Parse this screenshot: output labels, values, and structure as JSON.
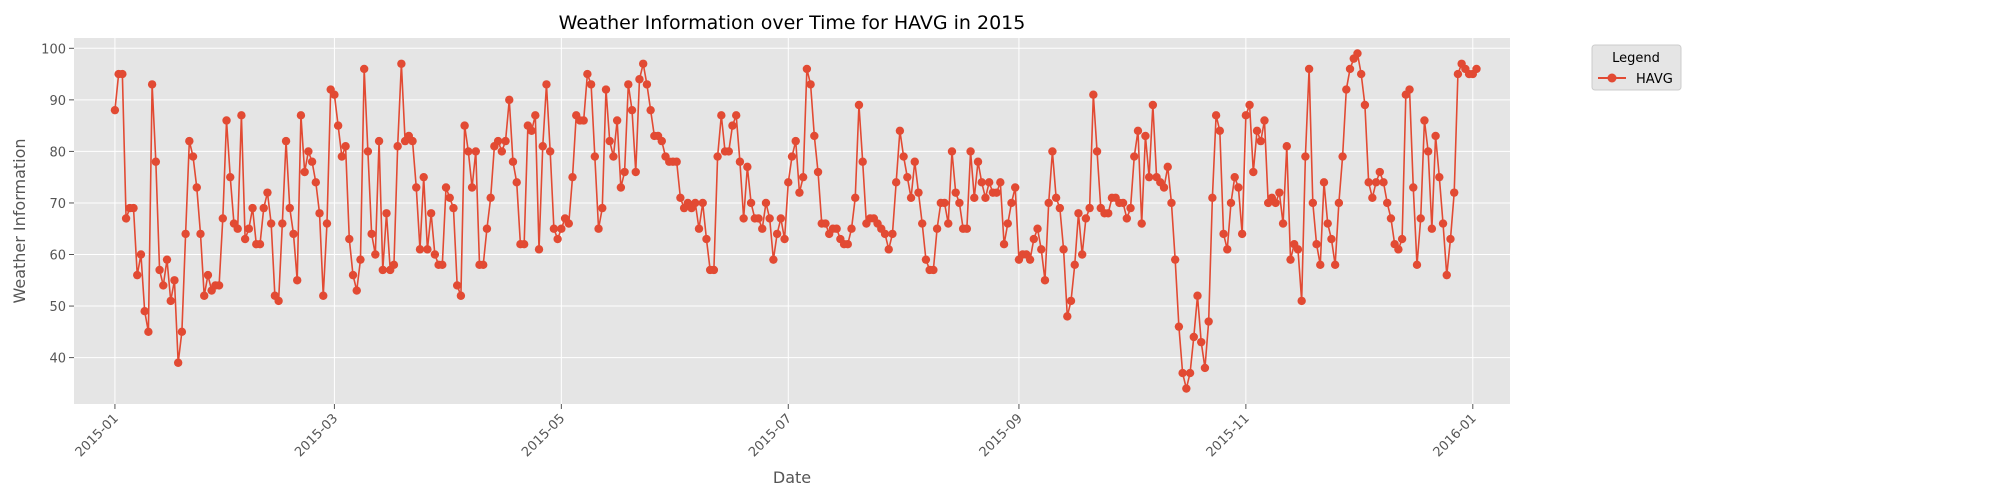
{
  "chart_data": {
    "type": "line",
    "title": "Weather Information over Time for HAVG in 2015",
    "xlabel": "Date",
    "ylabel": "Weather Information",
    "xlim": [
      "2014-12-21",
      "2016-01-11"
    ],
    "ylim": [
      31,
      102
    ],
    "x_ticks": [
      "2015-01",
      "2015-03",
      "2015-05",
      "2015-07",
      "2015-09",
      "2015-11",
      "2016-01"
    ],
    "y_ticks": [
      40,
      50,
      60,
      70,
      80,
      90,
      100
    ],
    "grid": true,
    "legend": {
      "title": "Legend",
      "placement": "outside-top-right"
    },
    "series": [
      {
        "name": "HAVG",
        "color": "#e24a33",
        "start_date": "2015-01-01",
        "values": [
          88,
          95,
          95,
          67,
          69,
          69,
          56,
          60,
          49,
          45,
          93,
          78,
          57,
          54,
          59,
          51,
          55,
          39,
          45,
          64,
          82,
          79,
          73,
          64,
          52,
          56,
          53,
          54,
          54,
          67,
          86,
          75,
          66,
          65,
          87,
          63,
          65,
          69,
          62,
          62,
          69,
          72,
          66,
          52,
          51,
          66,
          82,
          69,
          64,
          55,
          87,
          76,
          80,
          78,
          74,
          68,
          52,
          66,
          92,
          91,
          85,
          79,
          81,
          63,
          56,
          53,
          59,
          96,
          80,
          64,
          60,
          82,
          57,
          68,
          57,
          58,
          81,
          97,
          82,
          83,
          82,
          73,
          61,
          75,
          61,
          68,
          60,
          58,
          58,
          73,
          71,
          69,
          54,
          52,
          85,
          80,
          73,
          80,
          58,
          58,
          65,
          71,
          81,
          82,
          80,
          82,
          90,
          78,
          74,
          62,
          62,
          85,
          84,
          87,
          61,
          81,
          93,
          80,
          65,
          63,
          65,
          67,
          66,
          75,
          87,
          86,
          86,
          95,
          93,
          79,
          65,
          69,
          92,
          82,
          79,
          86,
          73,
          76,
          93,
          88,
          76,
          94,
          97,
          93,
          88,
          83,
          83,
          82,
          79,
          78,
          78,
          78,
          71,
          69,
          70,
          69,
          70,
          65,
          70,
          63,
          57,
          57,
          79,
          87,
          80,
          80,
          85,
          87,
          78,
          67,
          77,
          70,
          67,
          67,
          65,
          70,
          67,
          59,
          64,
          67,
          63,
          74,
          79,
          82,
          72,
          75,
          96,
          93,
          83,
          76,
          66,
          66,
          64,
          65,
          65,
          63,
          62,
          62,
          65,
          71,
          89,
          78,
          66,
          67,
          67,
          66,
          65,
          64,
          61,
          64,
          74,
          84,
          79,
          75,
          71,
          78,
          72,
          66,
          59,
          57,
          57,
          65,
          70,
          70,
          66,
          80,
          72,
          70,
          65,
          65,
          80,
          71,
          78,
          74,
          71,
          74,
          72,
          72,
          74,
          62,
          66,
          70,
          73,
          59,
          60,
          60,
          59,
          63,
          65,
          61,
          55,
          70,
          80,
          71,
          69,
          61,
          48,
          51,
          58,
          68,
          60,
          67,
          69,
          91,
          80,
          69,
          68,
          68,
          71,
          71,
          70,
          70,
          67,
          69,
          79,
          84,
          66,
          83,
          75,
          89,
          75,
          74,
          73,
          77,
          70,
          59,
          46,
          37,
          34,
          37,
          44,
          52,
          43,
          38,
          47,
          71,
          87,
          84,
          64,
          61,
          70,
          75,
          73,
          64,
          87,
          89,
          76,
          84,
          82,
          86,
          70,
          71,
          70,
          72,
          66,
          81,
          59,
          62,
          61,
          51,
          79,
          96,
          70,
          62,
          58,
          74,
          66,
          63,
          58,
          70,
          79,
          92,
          96,
          98,
          99,
          95,
          89,
          74,
          71,
          74,
          76,
          74,
          70,
          67,
          62,
          61,
          63,
          91,
          92,
          73,
          58,
          67,
          86,
          80,
          65,
          83,
          75,
          66,
          56,
          63,
          72,
          95,
          97,
          96,
          95,
          95,
          96
        ]
      }
    ]
  }
}
